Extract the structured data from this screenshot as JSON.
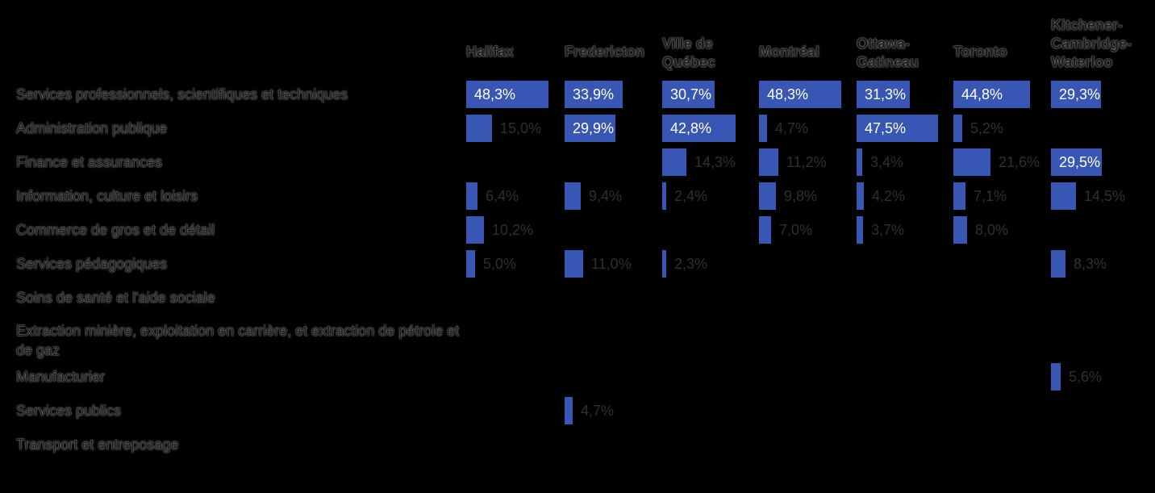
{
  "chart_data": {
    "type": "table",
    "columns": [
      "Halifax",
      "Fredericton",
      "Ville de\nQuébec",
      "Montréal",
      "Ottawa-\nGatineau",
      "Toronto",
      "Kitchener-\nCambridge-\nWaterloo"
    ],
    "rows": [
      "Services professionnels, scientifiques et techniques",
      "Administration publique",
      "Finance et assurances",
      "Information, culture et loisirs",
      "Commerce de gros et de détail",
      "Services pédagogiques",
      "Soins de santé et l'aide sociale",
      "Extraction minière, exploitation en carrière, et extraction de pétrole et de gaz",
      "Manufacturier",
      "Services publics",
      "Transport et entreposage"
    ],
    "values": [
      [
        48.3,
        33.9,
        30.7,
        48.3,
        31.3,
        44.8,
        29.3
      ],
      [
        15.0,
        29.9,
        42.8,
        4.7,
        47.5,
        5.2,
        null
      ],
      [
        null,
        null,
        14.3,
        11.2,
        3.4,
        21.6,
        29.5
      ],
      [
        6.4,
        9.4,
        2.4,
        9.8,
        4.2,
        7.1,
        14.5
      ],
      [
        10.2,
        null,
        null,
        7.0,
        3.7,
        8.0,
        null
      ],
      [
        5.0,
        11.0,
        2.3,
        null,
        null,
        null,
        8.3
      ],
      [
        null,
        null,
        null,
        null,
        null,
        null,
        null
      ],
      [
        null,
        null,
        null,
        null,
        null,
        null,
        null
      ],
      [
        null,
        null,
        null,
        null,
        null,
        null,
        5.6
      ],
      [
        null,
        4.7,
        null,
        null,
        null,
        null,
        null
      ],
      [
        null,
        null,
        null,
        null,
        null,
        null,
        null
      ]
    ],
    "unit": "%",
    "bar_color": "#3857b4"
  }
}
